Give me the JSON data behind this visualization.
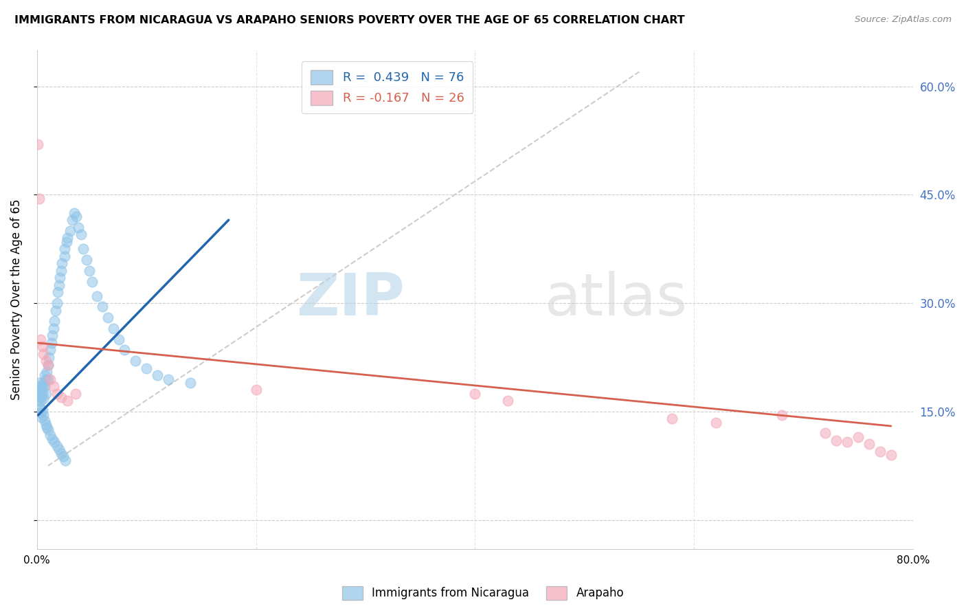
{
  "title": "IMMIGRANTS FROM NICARAGUA VS ARAPAHO SENIORS POVERTY OVER THE AGE OF 65 CORRELATION CHART",
  "source": "Source: ZipAtlas.com",
  "ylabel": "Seniors Poverty Over the Age of 65",
  "xlim": [
    0,
    0.8
  ],
  "ylim": [
    -0.04,
    0.65
  ],
  "yticks": [
    0.0,
    0.15,
    0.3,
    0.45,
    0.6
  ],
  "ytick_labels": [
    "",
    "15.0%",
    "30.0%",
    "45.0%",
    "60.0%"
  ],
  "xticks": [
    0.0,
    0.2,
    0.4,
    0.6,
    0.8
  ],
  "xtick_labels": [
    "0.0%",
    "",
    "",
    "",
    "80.0%"
  ],
  "legend1_label": "R =  0.439   N = 76",
  "legend2_label": "R = -0.167   N = 26",
  "blue_color": "#90c4e8",
  "pink_color": "#f4a8b8",
  "blue_line_color": "#2166ac",
  "pink_line_color": "#d6604d",
  "right_tick_color": "#4472c4",
  "background_color": "#ffffff",
  "watermark_zip": "ZIP",
  "watermark_atlas": "atlas",
  "blue_scatter_x": [
    0.001,
    0.001,
    0.001,
    0.002,
    0.002,
    0.002,
    0.003,
    0.003,
    0.003,
    0.004,
    0.004,
    0.005,
    0.005,
    0.006,
    0.006,
    0.007,
    0.007,
    0.008,
    0.008,
    0.009,
    0.01,
    0.01,
    0.011,
    0.012,
    0.013,
    0.014,
    0.015,
    0.016,
    0.017,
    0.018,
    0.019,
    0.02,
    0.021,
    0.022,
    0.023,
    0.025,
    0.025,
    0.027,
    0.028,
    0.03,
    0.032,
    0.034,
    0.036,
    0.038,
    0.04,
    0.042,
    0.045,
    0.048,
    0.05,
    0.055,
    0.06,
    0.065,
    0.07,
    0.075,
    0.08,
    0.09,
    0.1,
    0.11,
    0.12,
    0.14,
    0.003,
    0.004,
    0.005,
    0.006,
    0.007,
    0.008,
    0.009,
    0.01,
    0.012,
    0.014,
    0.016,
    0.018,
    0.02,
    0.022,
    0.024,
    0.026
  ],
  "blue_scatter_y": [
    0.175,
    0.185,
    0.165,
    0.18,
    0.17,
    0.19,
    0.175,
    0.165,
    0.155,
    0.18,
    0.17,
    0.185,
    0.175,
    0.19,
    0.168,
    0.2,
    0.185,
    0.195,
    0.175,
    0.205,
    0.215,
    0.195,
    0.225,
    0.235,
    0.245,
    0.255,
    0.265,
    0.275,
    0.29,
    0.3,
    0.315,
    0.325,
    0.335,
    0.345,
    0.355,
    0.365,
    0.375,
    0.385,
    0.39,
    0.4,
    0.415,
    0.425,
    0.42,
    0.405,
    0.395,
    0.375,
    0.36,
    0.345,
    0.33,
    0.31,
    0.295,
    0.28,
    0.265,
    0.25,
    0.235,
    0.22,
    0.21,
    0.2,
    0.195,
    0.19,
    0.148,
    0.142,
    0.152,
    0.145,
    0.138,
    0.132,
    0.128,
    0.125,
    0.118,
    0.112,
    0.108,
    0.102,
    0.098,
    0.092,
    0.088,
    0.082
  ],
  "pink_scatter_x": [
    0.001,
    0.002,
    0.003,
    0.005,
    0.006,
    0.008,
    0.01,
    0.012,
    0.015,
    0.018,
    0.022,
    0.028,
    0.035,
    0.2,
    0.4,
    0.43,
    0.58,
    0.62,
    0.68,
    0.72,
    0.73,
    0.74,
    0.75,
    0.76,
    0.77,
    0.78
  ],
  "pink_scatter_y": [
    0.52,
    0.445,
    0.25,
    0.24,
    0.23,
    0.22,
    0.215,
    0.195,
    0.185,
    0.175,
    0.17,
    0.165,
    0.175,
    0.18,
    0.175,
    0.165,
    0.14,
    0.135,
    0.145,
    0.12,
    0.11,
    0.108,
    0.115,
    0.105,
    0.095,
    0.09
  ],
  "blue_trendline_x": [
    0.001,
    0.175
  ],
  "blue_trendline_y": [
    0.145,
    0.415
  ],
  "pink_trendline_x": [
    0.001,
    0.78
  ],
  "pink_trendline_y": [
    0.245,
    0.13
  ],
  "dashed_line_x": [
    0.01,
    0.55
  ],
  "dashed_line_y": [
    0.075,
    0.62
  ]
}
